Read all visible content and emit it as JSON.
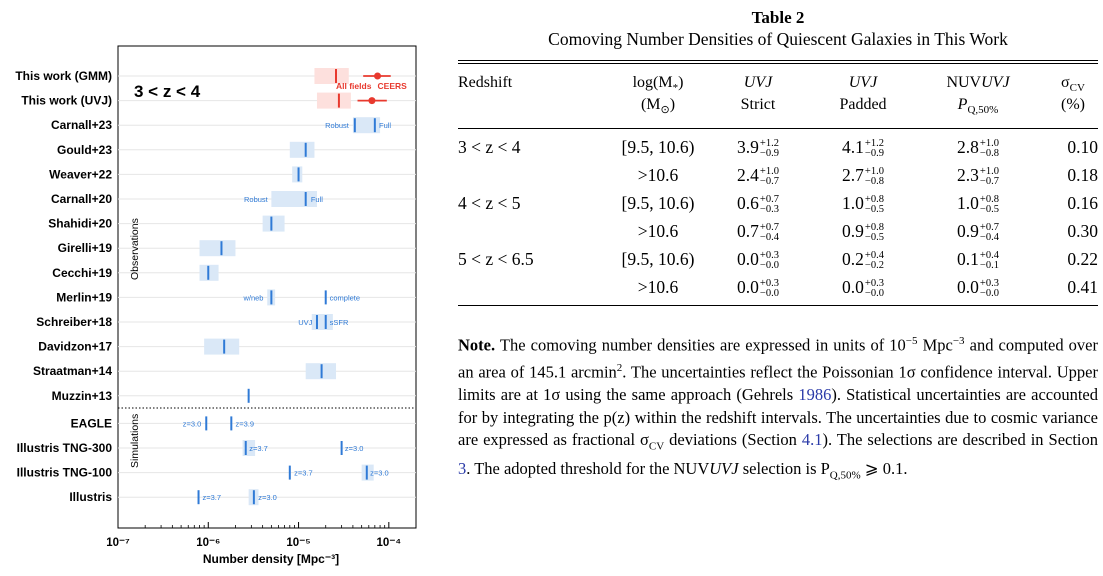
{
  "chart_data": {
    "type": "scatter",
    "xlabel": "Number density [Mpc⁻³]",
    "xscale": "log",
    "xlim": [
      1e-07,
      0.0002
    ],
    "xticks": [
      "10⁻⁷",
      "10⁻⁶",
      "10⁻⁵",
      "10⁻⁴"
    ],
    "panel_label": "3 < z < 4",
    "group_labels": [
      "Observations",
      "Simulations"
    ],
    "rows": [
      {
        "label": "This work (GMM)",
        "color": "#e8392e",
        "marks": [
          {
            "kind": "band",
            "x": [
              1.5e-05,
              3.6e-05
            ]
          },
          {
            "kind": "tick",
            "x": 2.6e-05
          },
          {
            "kind": "point",
            "x": 7.5e-05,
            "err": [
              5.2e-05,
              0.000105
            ]
          }
        ]
      },
      {
        "label": "This work (UVJ)",
        "color": "#e8392e",
        "marks": [
          {
            "kind": "band",
            "x": [
              1.6e-05,
              3.8e-05
            ]
          },
          {
            "kind": "tick",
            "x": 2.8e-05
          },
          {
            "kind": "point",
            "x": 6.5e-05,
            "err": [
              4.5e-05,
              9.5e-05
            ]
          }
        ]
      },
      {
        "label": "Carnall+23",
        "color": "#2f7ad6",
        "marks": [
          {
            "kind": "band",
            "x": [
              4e-05,
              8e-05
            ]
          },
          {
            "kind": "tick",
            "x": 4.2e-05
          },
          {
            "kind": "tick",
            "x": 7e-05
          }
        ]
      },
      {
        "label": "Gould+23",
        "color": "#2f7ad6",
        "marks": [
          {
            "kind": "band",
            "x": [
              8e-06,
              1.5e-05
            ]
          },
          {
            "kind": "tick",
            "x": 1.2e-05
          }
        ]
      },
      {
        "label": "Weaver+22",
        "color": "#2f7ad6",
        "marks": [
          {
            "kind": "band",
            "x": [
              8.5e-06,
              1.1e-05
            ]
          },
          {
            "kind": "tick",
            "x": 1e-05
          }
        ]
      },
      {
        "label": "Carnall+20",
        "color": "#2f7ad6",
        "marks": [
          {
            "kind": "band",
            "x": [
              5e-06,
              1.6e-05
            ]
          },
          {
            "kind": "tick",
            "x": 1.2e-05
          }
        ]
      },
      {
        "label": "Shahidi+20",
        "color": "#2f7ad6",
        "marks": [
          {
            "kind": "band",
            "x": [
              4e-06,
              7e-06
            ]
          },
          {
            "kind": "tick",
            "x": 5e-06
          }
        ]
      },
      {
        "label": "Girelli+19",
        "color": "#2f7ad6",
        "marks": [
          {
            "kind": "band",
            "x": [
              8e-07,
              2e-06
            ]
          },
          {
            "kind": "tick",
            "x": 1.4e-06
          }
        ]
      },
      {
        "label": "Cecchi+19",
        "color": "#2f7ad6",
        "marks": [
          {
            "kind": "band",
            "x": [
              8e-07,
              1.3e-06
            ]
          },
          {
            "kind": "tick",
            "x": 1e-06
          }
        ]
      },
      {
        "label": "Merlin+19",
        "color": "#2f7ad6",
        "marks": [
          {
            "kind": "band",
            "x": [
              4.5e-06,
              5.5e-06
            ]
          },
          {
            "kind": "tick",
            "x": 5e-06
          },
          {
            "kind": "tick",
            "x": 2e-05
          }
        ]
      },
      {
        "label": "Schreiber+18",
        "color": "#2f7ad6",
        "marks": [
          {
            "kind": "band",
            "x": [
              1.4e-05,
              2.4e-05
            ]
          },
          {
            "kind": "tick",
            "x": 1.6e-05
          },
          {
            "kind": "tick",
            "x": 2e-05
          }
        ]
      },
      {
        "label": "Davidzon+17",
        "color": "#2f7ad6",
        "marks": [
          {
            "kind": "band",
            "x": [
              9e-07,
              2.2e-06
            ]
          },
          {
            "kind": "tick",
            "x": 1.5e-06
          }
        ]
      },
      {
        "label": "Straatman+14",
        "color": "#2f7ad6",
        "marks": [
          {
            "kind": "band",
            "x": [
              1.2e-05,
              2.6e-05
            ]
          },
          {
            "kind": "tick",
            "x": 1.8e-05
          }
        ]
      },
      {
        "label": "Muzzin+13",
        "color": "#2f7ad6",
        "marks": [
          {
            "kind": "tick",
            "x": 2.8e-06
          }
        ]
      },
      {
        "label": "EAGLE",
        "color": "#2f7ad6",
        "marks": [
          {
            "kind": "tick",
            "x": 9.5e-07
          },
          {
            "kind": "tick",
            "x": 1.8e-06
          }
        ]
      },
      {
        "label": "Illustris TNG-300",
        "color": "#2f7ad6",
        "marks": [
          {
            "kind": "band",
            "x": [
              2.4e-06,
              3.3e-06
            ]
          },
          {
            "kind": "tick",
            "x": 2.6e-06
          },
          {
            "kind": "tick",
            "x": 3e-05
          }
        ]
      },
      {
        "label": "Illustris TNG-100",
        "color": "#2f7ad6",
        "marks": [
          {
            "kind": "tick",
            "x": 8e-06
          },
          {
            "kind": "band",
            "x": [
              5e-05,
              6.8e-05
            ]
          },
          {
            "kind": "tick",
            "x": 5.7e-05
          }
        ]
      },
      {
        "label": "Illustris",
        "color": "#2f7ad6",
        "marks": [
          {
            "kind": "tick",
            "x": 7.8e-07
          },
          {
            "kind": "band",
            "x": [
              2.8e-06,
              3.6e-06
            ]
          },
          {
            "kind": "tick",
            "x": 3.2e-06
          }
        ]
      }
    ],
    "annotations": [
      {
        "row": 0,
        "x": 2.6e-05,
        "text": "All fields",
        "color": "#e8392e",
        "align": "center",
        "dy": 10
      },
      {
        "row": 0,
        "x": 7.5e-05,
        "text": "CEERS",
        "color": "#e8392e",
        "align": "center",
        "dy": 10
      },
      {
        "row": 2,
        "x": 3.8e-05,
        "text": "Robust",
        "color": "#2f7ad6",
        "align": "end",
        "dy": 0
      },
      {
        "row": 2,
        "x": 7.4e-05,
        "text": "Full",
        "color": "#2f7ad6",
        "align": "start",
        "dy": 0
      },
      {
        "row": 5,
        "x": 4.8e-06,
        "text": "Robust",
        "color": "#2f7ad6",
        "align": "end",
        "dy": 0
      },
      {
        "row": 5,
        "x": 1.3e-05,
        "text": "Full",
        "color": "#2f7ad6",
        "align": "start",
        "dy": 0
      },
      {
        "row": 9,
        "x": 4.3e-06,
        "text": "w/neb",
        "color": "#2f7ad6",
        "align": "end",
        "dy": 0
      },
      {
        "row": 9,
        "x": 2.1e-05,
        "text": "complete",
        "color": "#2f7ad6",
        "align": "start",
        "dy": 0
      },
      {
        "row": 10,
        "x": 1.5e-05,
        "text": "UVJ",
        "color": "#2f7ad6",
        "align": "end",
        "dy": 0
      },
      {
        "row": 10,
        "x": 2.1e-05,
        "text": "sSFR",
        "color": "#2f7ad6",
        "align": "start",
        "dy": 0
      },
      {
        "row": 14,
        "x": 8.8e-07,
        "text": "z=3.0",
        "color": "#2f7ad6",
        "align": "end",
        "dy": 0
      },
      {
        "row": 14,
        "x": 1.9e-06,
        "text": "z=3.9",
        "color": "#2f7ad6",
        "align": "start",
        "dy": 0
      },
      {
        "row": 15,
        "x": 2.7e-06,
        "text": "z=3.7",
        "color": "#2f7ad6",
        "align": "start",
        "dy": 0
      },
      {
        "row": 15,
        "x": 3.1e-05,
        "text": "z=3.0",
        "color": "#2f7ad6",
        "align": "start",
        "dy": 0
      },
      {
        "row": 16,
        "x": 8.5e-06,
        "text": "z=3.7",
        "color": "#2f7ad6",
        "align": "start",
        "dy": 0
      },
      {
        "row": 16,
        "x": 5.9e-05,
        "text": "z=3.0",
        "color": "#2f7ad6",
        "align": "start",
        "dy": 0
      },
      {
        "row": 17,
        "x": 8.2e-07,
        "text": "z=3.7",
        "color": "#2f7ad6",
        "align": "start",
        "dy": 0
      },
      {
        "row": 17,
        "x": 3.4e-06,
        "text": "z=3.0",
        "color": "#2f7ad6",
        "align": "start",
        "dy": 0
      }
    ]
  },
  "table": {
    "number": "Table 2",
    "title": "Comoving Number Densities of Quiescent Galaxies in This Work",
    "headers": {
      "redshift": "Redshift",
      "mass_1": "log(M",
      "mass_sub": "*",
      "mass_1b": ")",
      "mass_2": "(M",
      "mass_2_sub": "⊙",
      "mass_2b": ")",
      "uvj_strict_1": "UVJ",
      "uvj_strict_2": "Strict",
      "uvj_padded_1": "UVJ",
      "uvj_padded_2": "Padded",
      "nuv_1a": "NUV",
      "nuv_1b": "UVJ",
      "nuv_2": "P",
      "nuv_2_sub": "Q,50%",
      "cv_1": "σ",
      "cv_1_sub": "CV",
      "cv_2": "(%)"
    },
    "rows": [
      {
        "redshift": "3 < z < 4",
        "mass": "[9.5, 10.6)",
        "strict": {
          "v": "3.9",
          "up": "+1.2",
          "lo": "−0.9"
        },
        "padded": {
          "v": "4.1",
          "up": "+1.2",
          "lo": "−0.9"
        },
        "nuv": {
          "v": "2.8",
          "up": "+1.0",
          "lo": "−0.8"
        },
        "cv": "0.10"
      },
      {
        "redshift": "",
        "mass": ">10.6",
        "strict": {
          "v": "2.4",
          "up": "+1.0",
          "lo": "−0.7"
        },
        "padded": {
          "v": "2.7",
          "up": "+1.0",
          "lo": "−0.8"
        },
        "nuv": {
          "v": "2.3",
          "up": "+1.0",
          "lo": "−0.7"
        },
        "cv": "0.18"
      },
      {
        "redshift": "4 < z < 5",
        "mass": "[9.5, 10.6)",
        "strict": {
          "v": "0.6",
          "up": "+0.7",
          "lo": "−0.3"
        },
        "padded": {
          "v": "1.0",
          "up": "+0.8",
          "lo": "−0.5"
        },
        "nuv": {
          "v": "1.0",
          "up": "+0.8",
          "lo": "−0.5"
        },
        "cv": "0.16"
      },
      {
        "redshift": "",
        "mass": ">10.6",
        "strict": {
          "v": "0.7",
          "up": "+0.7",
          "lo": "−0.4"
        },
        "padded": {
          "v": "0.9",
          "up": "+0.8",
          "lo": "−0.5"
        },
        "nuv": {
          "v": "0.9",
          "up": "+0.7",
          "lo": "−0.4"
        },
        "cv": "0.30"
      },
      {
        "redshift": "5 < z < 6.5",
        "mass": "[9.5, 10.6)",
        "strict": {
          "v": "0.0",
          "up": "+0.3",
          "lo": "−0.0"
        },
        "padded": {
          "v": "0.2",
          "up": "+0.4",
          "lo": "−0.2"
        },
        "nuv": {
          "v": "0.1",
          "up": "+0.4",
          "lo": "−0.1"
        },
        "cv": "0.22"
      },
      {
        "redshift": "",
        "mass": ">10.6",
        "strict": {
          "v": "0.0",
          "up": "+0.3",
          "lo": "−0.0"
        },
        "padded": {
          "v": "0.0",
          "up": "+0.3",
          "lo": "−0.0"
        },
        "nuv": {
          "v": "0.0",
          "up": "+0.3",
          "lo": "−0.0"
        },
        "cv": "0.41"
      }
    ]
  },
  "note": {
    "lead": "Note.",
    "s1": " The comoving number densities are expressed in units of 10",
    "s1_exp": "−5",
    "s1b": " Mpc",
    "s1b_exp": "−3",
    "s2": " and computed over an area of 145.1 arcmin",
    "s2_exp": "2",
    "s3": ". The uncertainties reflect the Poissonian 1σ confidence interval. Upper limits are at 1σ using the same approach (Gehrels ",
    "cite1": "1986",
    "s4": "). Statistical uncertainties are accounted for by integrating the p(z) within the redshift intervals. The uncertainties due to cosmic variance are expressed as fractional σ",
    "s4_sub": "CV",
    "s5": " deviations (Section ",
    "cite2": "4.1",
    "s6": "). The selections are described in Section ",
    "cite3": "3",
    "s7": ". The adopted threshold for the NUV",
    "s7_it": "UVJ",
    "s8": " selection is P",
    "s8_sub": "Q,50%",
    "s9": " ⩾ 0.1."
  }
}
